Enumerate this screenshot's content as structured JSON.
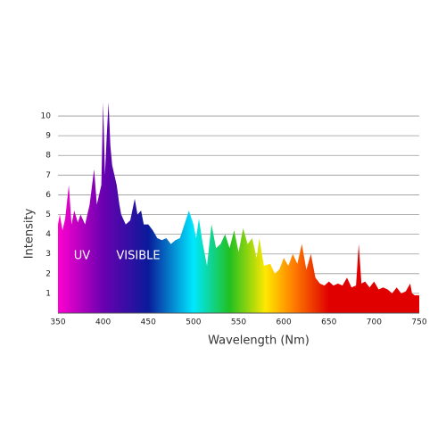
{
  "chart_data": {
    "type": "area",
    "xlabel": "Wavelength (Nm)",
    "ylabel": "Intensity",
    "annotations": [
      "UV",
      "VISIBLE"
    ],
    "x": [
      350,
      352,
      355,
      358,
      362,
      365,
      368,
      372,
      375,
      380,
      385,
      390,
      393,
      398,
      400,
      402,
      404,
      406,
      408,
      410,
      415,
      418,
      420,
      425,
      430,
      435,
      438,
      442,
      445,
      450,
      455,
      460,
      465,
      470,
      475,
      480,
      485,
      490,
      495,
      500,
      503,
      506,
      510,
      515,
      520,
      525,
      530,
      535,
      540,
      545,
      550,
      555,
      560,
      565,
      570,
      573,
      578,
      585,
      590,
      595,
      600,
      605,
      610,
      615,
      620,
      625,
      630,
      635,
      640,
      645,
      650,
      655,
      660,
      665,
      670,
      675,
      680,
      683,
      686,
      690,
      695,
      700,
      705,
      710,
      715,
      720,
      725,
      730,
      735,
      740,
      742,
      745,
      750
    ],
    "values": [
      4.5,
      5,
      4.2,
      4.8,
      6.5,
      4.5,
      5.2,
      4.6,
      5.0,
      4.5,
      5.5,
      7.3,
      5.5,
      6.5,
      10.7,
      7,
      9,
      10.7,
      8.5,
      7.5,
      6.5,
      5.5,
      5.0,
      4.5,
      4.7,
      5.8,
      5.0,
      5.2,
      4.5,
      4.5,
      4.2,
      3.8,
      3.7,
      3.8,
      3.5,
      3.7,
      3.8,
      4.5,
      5.2,
      4.5,
      3.8,
      4.8,
      3.6,
      2.4,
      4.5,
      3.3,
      3.5,
      4.0,
      3.3,
      4.2,
      3.1,
      4.3,
      3.5,
      3.8,
      2.8,
      3.8,
      2.4,
      2.5,
      2.0,
      2.2,
      2.8,
      2.4,
      3.0,
      2.5,
      3.5,
      2.2,
      3.0,
      1.8,
      1.5,
      1.4,
      1.6,
      1.4,
      1.5,
      1.4,
      1.8,
      1.3,
      1.4,
      3.5,
      1.5,
      1.6,
      1.3,
      1.6,
      1.2,
      1.3,
      1.2,
      1.0,
      1.3,
      1.0,
      1.1,
      1.5,
      1.0,
      0.9,
      0.9
    ],
    "gradient": {
      "x": [
        350,
        400,
        450,
        500,
        540,
        580,
        610,
        650,
        750
      ],
      "colors": [
        "#ff00d0",
        "#6a00b0",
        "#0a1a9a",
        "#00e8ff",
        "#20c020",
        "#ffe800",
        "#ff8000",
        "#e00000",
        "#e00000"
      ]
    },
    "xlim": [
      350,
      750
    ],
    "ylim": [
      0,
      10.5
    ],
    "xticks": [
      350,
      400,
      450,
      500,
      550,
      600,
      650,
      700,
      750
    ],
    "yticks": [
      1,
      2,
      3,
      4,
      5,
      6,
      7,
      8,
      9,
      10
    ],
    "grid": true
  }
}
